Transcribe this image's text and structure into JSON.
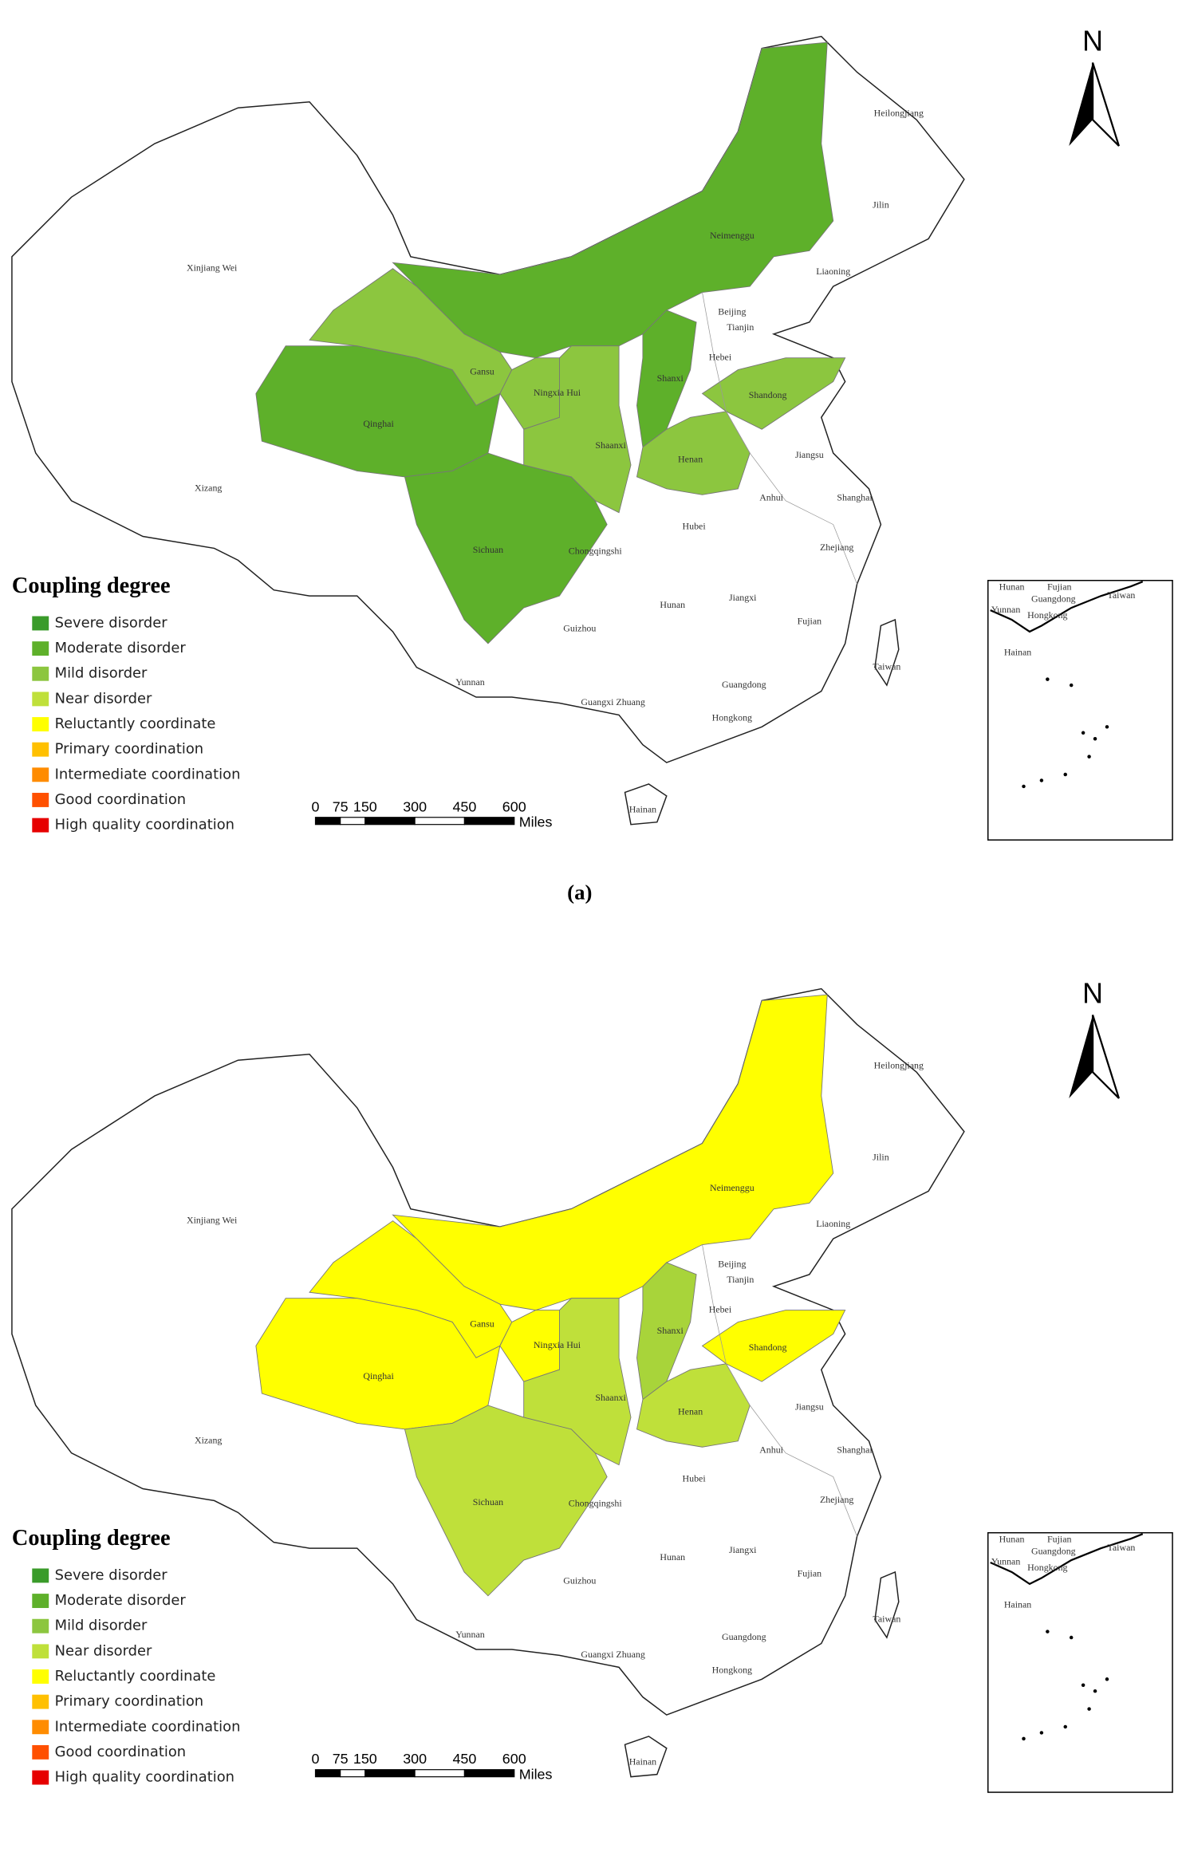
{
  "panels": [
    {
      "caption": "(a)",
      "north": "N",
      "regions": [
        {
          "label": "Neimenggu",
          "color": "#5eb02a"
        },
        {
          "label": "Gansu",
          "color": "#8cc63f"
        },
        {
          "label": "Qinghai",
          "color": "#5eb02a"
        },
        {
          "label": "Sichuan",
          "color": "#5eb02a"
        },
        {
          "label": "Ningxia Hui",
          "color": "#8cc63f"
        },
        {
          "label": "Shaanxi",
          "color": "#8cc63f"
        },
        {
          "label": "Shanxi",
          "color": "#5eb02a"
        },
        {
          "label": "Henan",
          "color": "#8cc63f"
        },
        {
          "label": "Shandong",
          "color": "#8cc63f"
        }
      ],
      "labels": [
        "Heilongjiang",
        "Jilin",
        "Liaoning",
        "Beijing",
        "Tianjin",
        "Hebei",
        "Jiangsu",
        "Anhui",
        "Shanghai",
        "Hubei",
        "Chongqingshi",
        "Zhejiang",
        "Jiangxi",
        "Hunan",
        "Guizhou",
        "Fujian",
        "Yunnan",
        "Guangxi Zhuang",
        "Guangdong",
        "Hongkong",
        "Taiwan",
        "Hainan",
        "Xinjiang Wei",
        "Xizang"
      ],
      "inset_labels": [
        "Hunan",
        "Fujian",
        "Yunnan",
        "Guangdong",
        "Hongkong",
        "Taiwan",
        "Hainan"
      ],
      "legend": {
        "title": "Coupling degree",
        "items": [
          {
            "label": "Severe disorder",
            "color": "#3a9b2a"
          },
          {
            "label": "Moderate disorder",
            "color": "#5eb02a"
          },
          {
            "label": "Mild disorder",
            "color": "#8cc63f"
          },
          {
            "label": "Near disorder",
            "color": "#bfe03a"
          },
          {
            "label": "Reluctantly coordinate",
            "color": "#ffff00"
          },
          {
            "label": "Primary coordination",
            "color": "#ffc000"
          },
          {
            "label": "Intermediate coordination",
            "color": "#ff8c00"
          },
          {
            "label": "Good coordination",
            "color": "#ff5000"
          },
          {
            "label": "High quality coordination",
            "color": "#e60000"
          }
        ]
      },
      "scale": {
        "ticks": [
          0,
          75,
          150,
          300,
          450,
          600
        ],
        "unit": "Miles"
      }
    },
    {
      "caption": "(b)",
      "north": "N",
      "regions": [
        {
          "label": "Neimenggu",
          "color": "#ffff00"
        },
        {
          "label": "Gansu",
          "color": "#ffff00"
        },
        {
          "label": "Qinghai",
          "color": "#ffff00"
        },
        {
          "label": "Sichuan",
          "color": "#bfe03a"
        },
        {
          "label": "Ningxia Hui",
          "color": "#ffff00"
        },
        {
          "label": "Shaanxi",
          "color": "#bfe03a"
        },
        {
          "label": "Shanxi",
          "color": "#a8d43a"
        },
        {
          "label": "Henan",
          "color": "#bfe03a"
        },
        {
          "label": "Shandong",
          "color": "#ffff00"
        }
      ],
      "labels": [
        "Heilongjiang",
        "Jilin",
        "Liaoning",
        "Beijing",
        "Tianjin",
        "Hebei",
        "Jiangsu",
        "Anhui",
        "Shanghai",
        "Hubei",
        "Chongqingshi",
        "Zhejiang",
        "Jiangxi",
        "Hunan",
        "Guizhou",
        "Fujian",
        "Yunnan",
        "Guangxi Zhuang",
        "Guangdong",
        "Hongkong",
        "Taiwan",
        "Hainan",
        "Xinjiang Wei",
        "Xizang"
      ],
      "inset_labels": [
        "Hunan",
        "Fujian",
        "Yunnan",
        "Guangdong",
        "Hongkong",
        "Taiwan",
        "Hainan"
      ],
      "legend": {
        "title": "Coupling degree",
        "items": [
          {
            "label": "Severe disorder",
            "color": "#3a9b2a"
          },
          {
            "label": "Moderate disorder",
            "color": "#5eb02a"
          },
          {
            "label": "Mild disorder",
            "color": "#8cc63f"
          },
          {
            "label": "Near disorder",
            "color": "#bfe03a"
          },
          {
            "label": "Reluctantly coordinate",
            "color": "#ffff00"
          },
          {
            "label": "Primary coordination",
            "color": "#ffc000"
          },
          {
            "label": "Intermediate coordination",
            "color": "#ff8c00"
          },
          {
            "label": "Good coordination",
            "color": "#ff5000"
          },
          {
            "label": "High quality coordination",
            "color": "#e60000"
          }
        ]
      },
      "scale": {
        "ticks": [
          0,
          75,
          150,
          300,
          450,
          600
        ],
        "unit": "Miles"
      }
    }
  ]
}
